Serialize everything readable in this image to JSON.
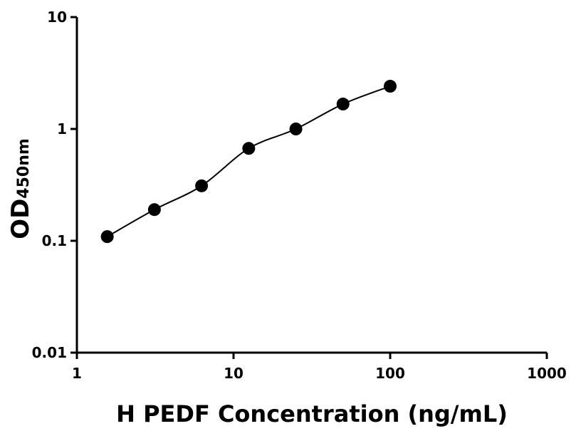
{
  "chart_data": {
    "type": "scatter",
    "x_label": "H PEDF Concentration (ng/mL)",
    "y_label": "OD",
    "y_label_sub": "450nm",
    "x": [
      1.5625,
      3.125,
      6.25,
      12.5,
      25,
      50,
      100
    ],
    "series": [
      {
        "color": "#000000",
        "values": [
          0.109,
          0.19,
          0.31,
          0.67,
          1.0,
          1.67,
          2.41
        ]
      }
    ],
    "xlim": [
      1,
      1000
    ],
    "xticks": [
      1,
      10,
      100,
      1000
    ],
    "ylim": [
      0.01,
      10
    ],
    "yticks": [
      0.01,
      0.1,
      1,
      10
    ],
    "x_log": true,
    "y_log": true,
    "fit_line": true
  }
}
